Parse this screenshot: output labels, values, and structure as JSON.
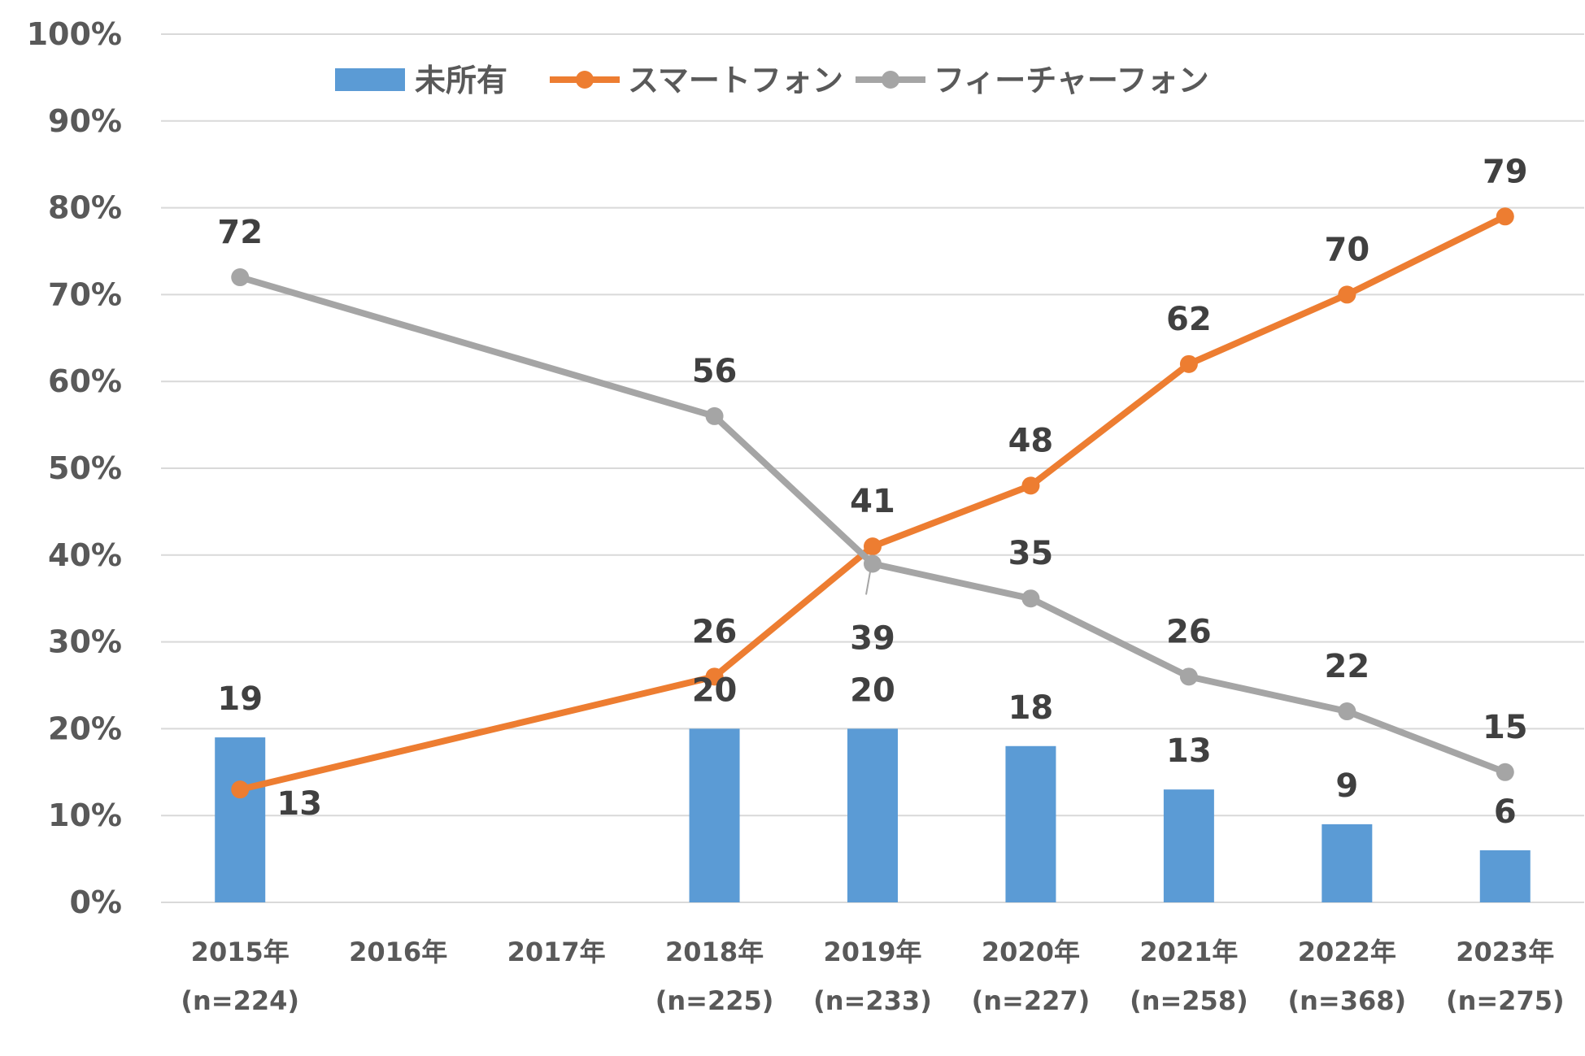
{
  "chart_data": {
    "type": "bar",
    "categories": [
      "2015年",
      "2016年",
      "2017年",
      "2018年",
      "2019年",
      "2020年",
      "2021年",
      "2022年",
      "2023年"
    ],
    "category_sublabels": [
      "(n=224)",
      "",
      "",
      "(n=225)",
      "(n=233)",
      "(n=227)",
      "(n=258)",
      "(n=368)",
      "(n=275)"
    ],
    "series": [
      {
        "name": "未所有",
        "type": "bar",
        "color": "#5b9bd5",
        "values": [
          19,
          null,
          null,
          20,
          20,
          18,
          13,
          9,
          6
        ],
        "value_labels": [
          "19",
          "",
          "",
          "20",
          "20",
          "18",
          "13",
          "9",
          "6"
        ]
      },
      {
        "name": "スマートフォン",
        "type": "line",
        "color": "#ed7d31",
        "values": [
          13,
          null,
          null,
          26,
          41,
          48,
          62,
          70,
          79
        ],
        "value_labels": [
          "13",
          "",
          "",
          "26",
          "41",
          "48",
          "62",
          "70",
          "79"
        ]
      },
      {
        "name": "フィーチャーフォン",
        "type": "line",
        "color": "#a5a5a5",
        "values": [
          72,
          null,
          null,
          56,
          39,
          35,
          26,
          22,
          15
        ],
        "value_labels": [
          "72",
          "",
          "",
          "56",
          "39",
          "35",
          "26",
          "22",
          "15"
        ]
      }
    ],
    "y_ticks": [
      "0%",
      "10%",
      "20%",
      "30%",
      "40%",
      "50%",
      "60%",
      "70%",
      "80%",
      "90%",
      "100%"
    ],
    "ylim": [
      0,
      100
    ],
    "grid": true,
    "legend_position": "top"
  }
}
